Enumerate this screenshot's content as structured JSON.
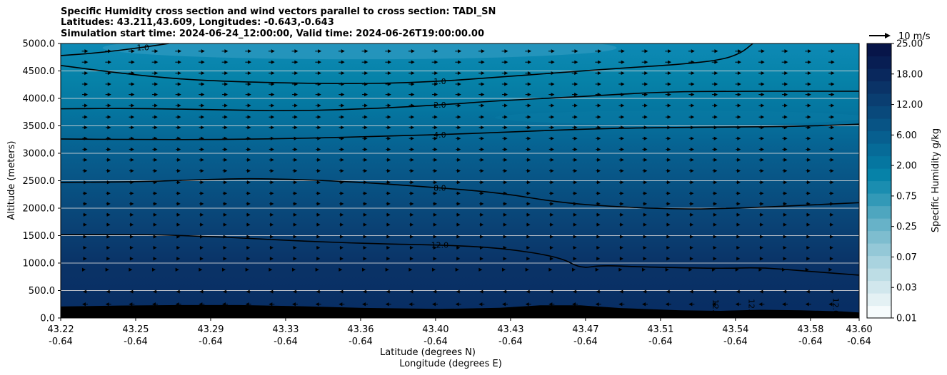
{
  "header": {
    "title_line1": "Specific Humidity cross section and wind vectors parallel to cross section: TADI_SN",
    "title_line2": "Latitudes: 43.211,43.609, Longitudes: -0.643,-0.643",
    "title_line3": "Simulation start time: 2024-06-24_12:00:00, Valid time: 2024-06-26T19:00:00.00"
  },
  "quiver_key": {
    "label": "10 m/s"
  },
  "colors": {
    "terrain": "#000000",
    "grid": "#d9d9d9",
    "contour": "#000000"
  },
  "chart_data": {
    "type": "heatmap",
    "xlabel": "Latitude (degrees N)",
    "xlabel2": "Longitude (degrees E)",
    "ylabel": "Altitude (meters)",
    "ylim": [
      0,
      5000
    ],
    "xlim": [
      43.211,
      43.609
    ],
    "grid": true,
    "y_ticks": [
      "0.0",
      "500.0",
      "1000.0",
      "1500.0",
      "2000.0",
      "2500.0",
      "3000.0",
      "3500.0",
      "4000.0",
      "4500.0",
      "5000.0"
    ],
    "x_ticks": [
      {
        "lat": "43.22",
        "lon": "-0.64"
      },
      {
        "lat": "43.25",
        "lon": "-0.64"
      },
      {
        "lat": "43.29",
        "lon": "-0.64"
      },
      {
        "lat": "43.33",
        "lon": "-0.64"
      },
      {
        "lat": "43.36",
        "lon": "-0.64"
      },
      {
        "lat": "43.40",
        "lon": "-0.64"
      },
      {
        "lat": "43.43",
        "lon": "-0.64"
      },
      {
        "lat": "43.47",
        "lon": "-0.64"
      },
      {
        "lat": "43.51",
        "lon": "-0.64"
      },
      {
        "lat": "43.54",
        "lon": "-0.64"
      },
      {
        "lat": "43.58",
        "lon": "-0.64"
      },
      {
        "lat": "43.60",
        "lon": "-0.64"
      }
    ],
    "colorbar": {
      "label": "Specific Humidity g/kg",
      "levels": [
        0.01,
        0.02,
        0.03,
        0.05,
        0.07,
        0.1,
        0.15,
        0.25,
        0.35,
        0.5,
        0.75,
        1.0,
        1.5,
        2.0,
        3.0,
        4.0,
        6.0,
        8.0,
        12.0,
        15.0,
        18.0,
        21.0,
        25.0
      ],
      "tick_labels": [
        "0.01",
        "0.03",
        "0.07",
        "0.25",
        "0.75",
        "2.00",
        "6.00",
        "12.00",
        "18.00",
        "25.00"
      ],
      "colors": [
        "#f6fbfc",
        "#e4f1f4",
        "#d1e7ed",
        "#bddde5",
        "#a9d3df",
        "#94c8d7",
        "#7ebdcf",
        "#67b2c8",
        "#4ea6bf",
        "#3299b7",
        "#1a8db0",
        "#0682a8",
        "#0576a0",
        "#066b98",
        "#075f8f",
        "#085485",
        "#09497b",
        "#0a3e71",
        "#0a3367",
        "#09285d",
        "#081e53",
        "#071549"
      ],
      "extend": "none"
    },
    "terrain": {
      "x": [
        43.211,
        43.24,
        43.27,
        43.3,
        43.33,
        43.36,
        43.4,
        43.43,
        43.45,
        43.47,
        43.49,
        43.52,
        43.54,
        43.56,
        43.58,
        43.6,
        43.609
      ],
      "y": [
        210,
        225,
        235,
        235,
        215,
        185,
        165,
        185,
        230,
        230,
        180,
        140,
        130,
        150,
        140,
        120,
        100
      ]
    },
    "contours": [
      {
        "label": "12.0",
        "x": [
          43.211,
          43.25,
          43.29,
          43.33,
          43.37,
          43.4,
          43.43,
          43.46,
          43.47,
          43.48,
          43.5,
          43.54,
          43.56,
          43.58,
          43.609
        ],
        "y": [
          1520,
          1525,
          1480,
          1400,
          1350,
          1330,
          1280,
          1110,
          900,
          960,
          930,
          900,
          920,
          860,
          780
        ]
      },
      {
        "label": "8.0",
        "x": [
          43.211,
          43.25,
          43.29,
          43.31,
          43.34,
          43.37,
          43.4,
          43.43,
          43.46,
          43.49,
          43.52,
          43.55,
          43.58,
          43.609
        ],
        "y": [
          2470,
          2480,
          2530,
          2540,
          2510,
          2450,
          2370,
          2280,
          2100,
          2020,
          1980,
          2000,
          2050,
          2100
        ]
      },
      {
        "label": "4.0",
        "x": [
          43.211,
          43.25,
          43.29,
          43.33,
          43.37,
          43.4,
          43.43,
          43.47,
          43.51,
          43.55,
          43.58,
          43.609
        ],
        "y": [
          3260,
          3250,
          3250,
          3270,
          3310,
          3340,
          3380,
          3440,
          3470,
          3480,
          3490,
          3530
        ]
      },
      {
        "label": "2.0",
        "x": [
          43.211,
          43.25,
          43.29,
          43.33,
          43.37,
          43.4,
          43.43,
          43.47,
          43.51,
          43.55,
          43.58,
          43.609
        ],
        "y": [
          3810,
          3820,
          3790,
          3770,
          3820,
          3880,
          3960,
          4030,
          4120,
          4130,
          4130,
          4130
        ]
      },
      {
        "label": "1.0",
        "x": [
          43.211,
          43.24,
          43.27,
          43.3,
          43.34,
          43.37,
          43.4,
          43.43,
          43.46,
          43.49,
          43.52,
          43.54,
          43.55,
          43.556
        ],
        "y": [
          4600,
          4460,
          4350,
          4300,
          4270,
          4270,
          4310,
          4390,
          4470,
          4550,
          4620,
          4700,
          4820,
          5000
        ]
      },
      {
        "label": "1.0",
        "x": [
          43.211,
          43.23,
          43.25,
          43.265
        ],
        "y": [
          4780,
          4830,
          4920,
          5000
        ]
      }
    ],
    "wind_vectors": {
      "rows_m": [
        50,
        250,
        480,
        880,
        1080,
        1280,
        1480,
        1700,
        1880,
        2080,
        2270,
        2470,
        2680,
        2880,
        3070,
        3270,
        3470,
        3660,
        3870,
        4070,
        4260,
        4460,
        4660,
        4860
      ],
      "lower_direction": "toward lower latitude",
      "upper_direction": "toward higher latitude",
      "reference_speed": 10
    }
  }
}
